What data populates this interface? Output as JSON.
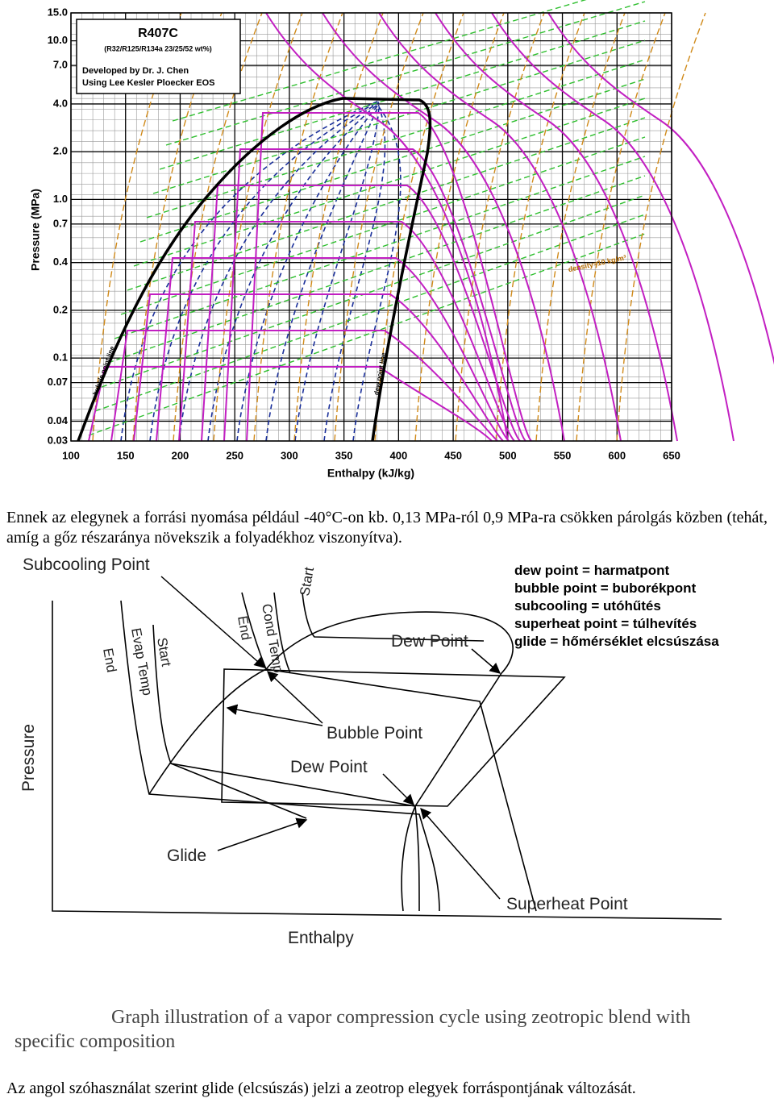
{
  "ph_chart": {
    "legend_box": {
      "title": "R407C",
      "composition": "(R32/R125/R134a 23/25/52 wt%)",
      "developer": "Developed by Dr. J. Chen",
      "method": "Using Lee Kesler Ploecker EOS"
    },
    "y_axis_label": "Pressure (MPa)",
    "x_axis_label": "Enthalpy (kJ/kg)",
    "y_ticks": [
      {
        "value": 15,
        "label": "15.0"
      },
      {
        "value": 10,
        "label": "10.0"
      },
      {
        "value": 7,
        "label": "7.0"
      },
      {
        "value": 4,
        "label": "4.0"
      },
      {
        "value": 2,
        "label": "2.0"
      },
      {
        "value": 1,
        "label": "1.0"
      },
      0.7,
      0.4,
      0.2,
      0.1,
      0.07,
      0.04,
      0.03
    ],
    "x_ticks": [
      100,
      150,
      200,
      250,
      300,
      350,
      400,
      450,
      500,
      550,
      600,
      650
    ],
    "curve_labels": {
      "bubble": "bubble point line",
      "dew": "dew point line",
      "density": "density=10 kg/m³"
    }
  },
  "paragraph_1": "Ennek az elegynek a forrási nyomása például -40°C-on kb. 0,13 MPa-ról 0,9 MPa-ra csökken párolgás közben (tehát, amíg a gőz részaránya növekszik a folyadékhoz viszonyítva).",
  "cycle_diagram": {
    "subcooling_point": "Subcooling Point",
    "cond_end": "End",
    "cond_temp": "Cond Temp.",
    "cond_start": "Start",
    "evap_end": "End",
    "evap_temp": "Evap Temp",
    "evap_start": "Start",
    "dew_point_top": "Dew Point",
    "bubble_point": "Bubble Point",
    "dew_point_bottom": "Dew Point",
    "glide": "Glide",
    "superheat_point": "Superheat Point",
    "y_axis_label": "Pressure",
    "x_axis_label": "Enthalpy",
    "glossary": [
      "dew point = harmatpont",
      "bubble point = buborékpont",
      "subcooling = utóhűtés",
      "superheat point = túlhevítés",
      "glide = hőmérséklet elcsúszása"
    ]
  },
  "caption": {
    "line_1": "Graph illustration of a vapor compression cycle using zeotropic blend with",
    "line_2": "specific composition"
  },
  "paragraph_2": "Az angol szóhasználat szerint glide (elcsúszás) jelzi a zeotrop elegyek forráspontjának változását."
}
